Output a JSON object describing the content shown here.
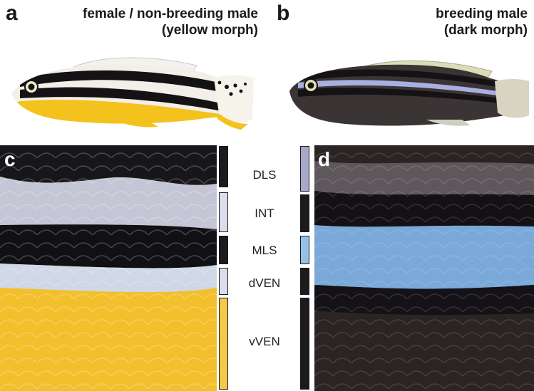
{
  "panels": {
    "a": {
      "letter": "a",
      "caption_line1": "female / non-breeding male",
      "caption_line2": "(yellow morph)"
    },
    "b": {
      "letter": "b",
      "caption_line1": "breeding male",
      "caption_line2": "(dark morph)"
    },
    "c": {
      "letter": "c"
    },
    "d": {
      "letter": "d"
    }
  },
  "regions": [
    {
      "label": "DLS",
      "color_c": "#1c1a1c",
      "color_d": "#a6a8cc"
    },
    {
      "label": "INT",
      "color_c": "#dcdcec",
      "color_d": "#1c1a1c"
    },
    {
      "label": "MLS",
      "color_c": "#1c1a1c",
      "color_d": "#93c2e6"
    },
    {
      "label": "dVEN",
      "color_c": "#dcdcec",
      "color_d": "#1c1a1c"
    },
    {
      "label": "vVEN",
      "color_c": "#f5c84a",
      "color_d": "#1c1a1c"
    }
  ],
  "colors": {
    "yellow_morph_body": "#f4c21c",
    "dark_morph_body": "#3b3434",
    "stripe_black": "#141214",
    "stripe_blue": "#8fb4e0"
  }
}
